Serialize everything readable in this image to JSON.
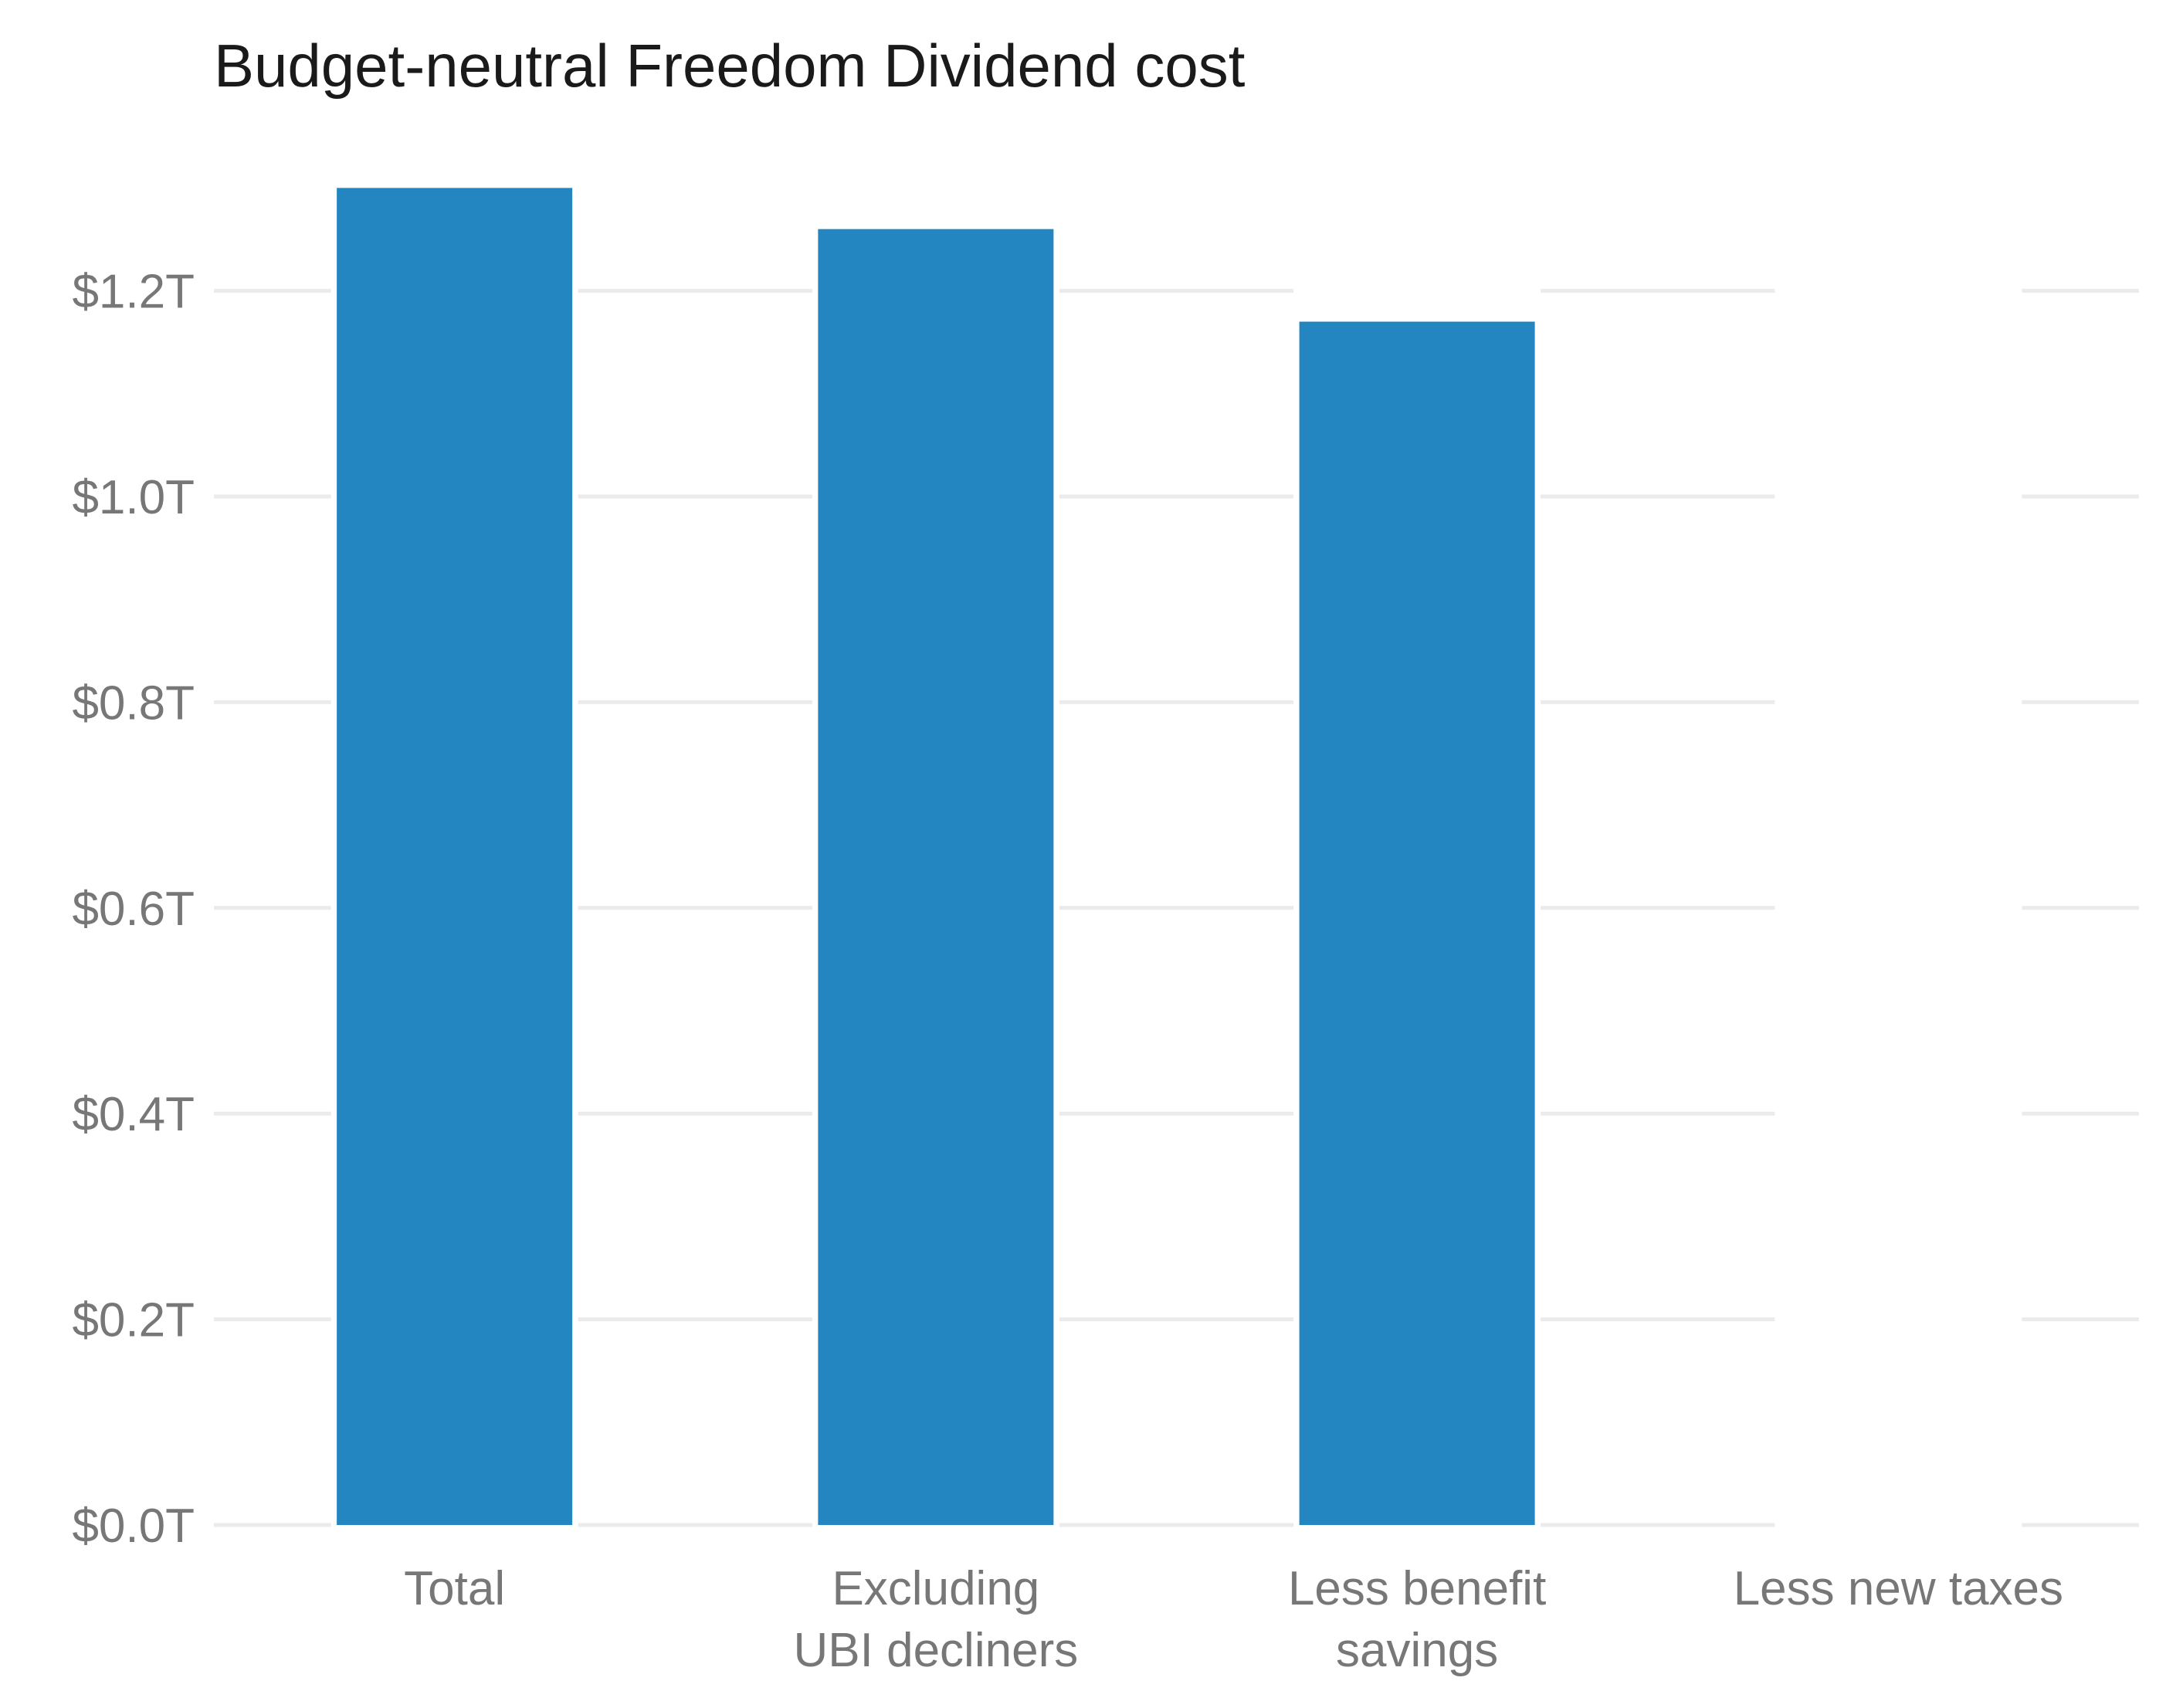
{
  "chart_data": {
    "type": "bar",
    "title": "Budget-neutral Freedom Dividend cost",
    "xlabel": "",
    "ylabel": "",
    "categories": [
      [
        "Total"
      ],
      [
        "Excluding",
        "UBI decliners"
      ],
      [
        "Less benefit",
        "savings"
      ],
      [
        "Less new taxes"
      ]
    ],
    "values": [
      1.3,
      1.26,
      1.17,
      0.0
    ],
    "y_ticks": [
      {
        "value": 0.0,
        "label": "$0.0T"
      },
      {
        "value": 0.2,
        "label": "$0.2T"
      },
      {
        "value": 0.4,
        "label": "$0.4T"
      },
      {
        "value": 0.6,
        "label": "$0.6T"
      },
      {
        "value": 0.8,
        "label": "$0.8T"
      },
      {
        "value": 1.0,
        "label": "$1.0T"
      },
      {
        "value": 1.2,
        "label": "$1.2T"
      }
    ],
    "ylim": [
      0,
      1.3
    ],
    "grid": true,
    "legend": "none",
    "bar_color": "#2386c1"
  }
}
